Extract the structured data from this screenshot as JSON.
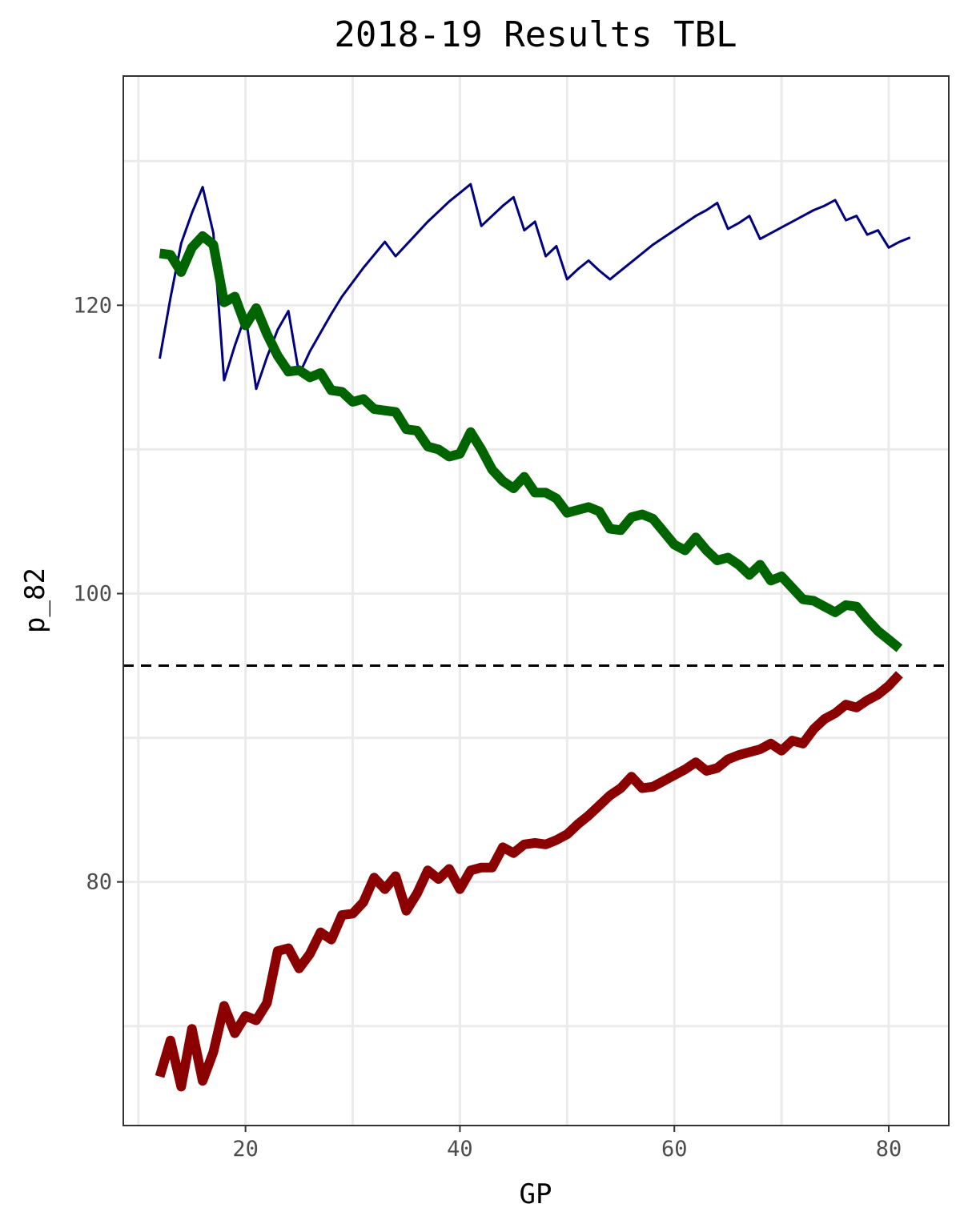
{
  "chart_data": {
    "type": "line",
    "title": "2018-19 Results TBL",
    "xlabel": "GP",
    "ylabel": "p_82",
    "xlim": [
      8.6,
      85.6
    ],
    "ylim": [
      63.1,
      135.9
    ],
    "x_ticks": [
      20,
      40,
      60,
      80
    ],
    "y_ticks": [
      80,
      100,
      120
    ],
    "grid": true,
    "legend": "none",
    "reference_line": {
      "y": 95,
      "style": "dashed",
      "color": "#000000"
    },
    "series": [
      {
        "color": "#000080",
        "line_width": "thin",
        "points": [
          [
            12,
            116.3
          ],
          [
            13,
            120.5
          ],
          [
            14,
            124.3
          ],
          [
            15,
            126.4
          ],
          [
            16,
            128.2
          ],
          [
            17,
            125.0
          ],
          [
            18,
            114.8
          ],
          [
            19,
            117.2
          ],
          [
            20,
            119.3
          ],
          [
            21,
            114.2
          ],
          [
            22,
            116.4
          ],
          [
            23,
            118.3
          ],
          [
            24,
            119.6
          ],
          [
            25,
            115.2
          ],
          [
            26,
            116.8
          ],
          [
            27,
            118.1
          ],
          [
            28,
            119.4
          ],
          [
            29,
            120.6
          ],
          [
            30,
            121.6
          ],
          [
            31,
            122.6
          ],
          [
            32,
            123.5
          ],
          [
            33,
            124.4
          ],
          [
            34,
            123.4
          ],
          [
            35,
            124.2
          ],
          [
            36,
            125.0
          ],
          [
            37,
            125.8
          ],
          [
            38,
            126.5
          ],
          [
            39,
            127.2
          ],
          [
            40,
            127.8
          ],
          [
            41,
            128.4
          ],
          [
            42,
            125.5
          ],
          [
            43,
            126.2
          ],
          [
            44,
            126.9
          ],
          [
            45,
            127.5
          ],
          [
            46,
            125.2
          ],
          [
            47,
            125.8
          ],
          [
            48,
            123.4
          ],
          [
            49,
            124.1
          ],
          [
            50,
            121.8
          ],
          [
            51,
            122.5
          ],
          [
            52,
            123.1
          ],
          [
            53,
            122.4
          ],
          [
            54,
            121.8
          ],
          [
            55,
            122.4
          ],
          [
            56,
            123.0
          ],
          [
            57,
            123.6
          ],
          [
            58,
            124.2
          ],
          [
            59,
            124.7
          ],
          [
            60,
            125.2
          ],
          [
            61,
            125.7
          ],
          [
            62,
            126.2
          ],
          [
            63,
            126.6
          ],
          [
            64,
            127.1
          ],
          [
            65,
            125.3
          ],
          [
            66,
            125.7
          ],
          [
            67,
            126.2
          ],
          [
            68,
            124.6
          ],
          [
            69,
            125.0
          ],
          [
            70,
            125.4
          ],
          [
            71,
            125.8
          ],
          [
            72,
            126.2
          ],
          [
            73,
            126.6
          ],
          [
            74,
            126.9
          ],
          [
            75,
            127.3
          ],
          [
            76,
            125.9
          ],
          [
            77,
            126.2
          ],
          [
            78,
            124.9
          ],
          [
            79,
            125.2
          ],
          [
            80,
            124.0
          ],
          [
            81,
            124.4
          ],
          [
            82,
            124.7
          ]
        ]
      },
      {
        "color": "#006400",
        "line_width": "thick",
        "points": [
          [
            12,
            123.6
          ],
          [
            13,
            123.5
          ],
          [
            14,
            122.3
          ],
          [
            15,
            124.0
          ],
          [
            16,
            124.8
          ],
          [
            17,
            124.2
          ],
          [
            18,
            120.2
          ],
          [
            19,
            120.6
          ],
          [
            20,
            118.6
          ],
          [
            21,
            119.8
          ],
          [
            22,
            118.0
          ],
          [
            23,
            116.5
          ],
          [
            24,
            115.4
          ],
          [
            25,
            115.5
          ],
          [
            26,
            115.0
          ],
          [
            27,
            115.3
          ],
          [
            28,
            114.1
          ],
          [
            29,
            114.0
          ],
          [
            30,
            113.3
          ],
          [
            31,
            113.5
          ],
          [
            32,
            112.8
          ],
          [
            33,
            112.7
          ],
          [
            34,
            112.6
          ],
          [
            35,
            111.4
          ],
          [
            36,
            111.3
          ],
          [
            37,
            110.2
          ],
          [
            38,
            110.0
          ],
          [
            39,
            109.5
          ],
          [
            40,
            109.7
          ],
          [
            41,
            111.2
          ],
          [
            42,
            110.0
          ],
          [
            43,
            108.6
          ],
          [
            44,
            107.8
          ],
          [
            45,
            107.3
          ],
          [
            46,
            108.1
          ],
          [
            47,
            107.0
          ],
          [
            48,
            107.0
          ],
          [
            49,
            106.6
          ],
          [
            50,
            105.6
          ],
          [
            51,
            105.8
          ],
          [
            52,
            106.0
          ],
          [
            53,
            105.7
          ],
          [
            54,
            104.5
          ],
          [
            55,
            104.4
          ],
          [
            56,
            105.3
          ],
          [
            57,
            105.5
          ],
          [
            58,
            105.2
          ],
          [
            59,
            104.3
          ],
          [
            60,
            103.4
          ],
          [
            61,
            103.0
          ],
          [
            62,
            103.9
          ],
          [
            63,
            103.0
          ],
          [
            64,
            102.3
          ],
          [
            65,
            102.5
          ],
          [
            66,
            102.0
          ],
          [
            67,
            101.3
          ],
          [
            68,
            102.0
          ],
          [
            69,
            100.9
          ],
          [
            70,
            101.2
          ],
          [
            71,
            100.4
          ],
          [
            72,
            99.6
          ],
          [
            73,
            99.5
          ],
          [
            74,
            99.1
          ],
          [
            75,
            98.7
          ],
          [
            76,
            99.2
          ],
          [
            77,
            99.1
          ],
          [
            78,
            98.2
          ],
          [
            79,
            97.4
          ],
          [
            80,
            96.8
          ],
          [
            81,
            96.2
          ]
        ]
      },
      {
        "color": "#8b0000",
        "line_width": "thick",
        "points": [
          [
            12,
            66.5
          ],
          [
            13,
            69.0
          ],
          [
            14,
            65.8
          ],
          [
            15,
            69.8
          ],
          [
            16,
            66.2
          ],
          [
            17,
            68.2
          ],
          [
            18,
            71.4
          ],
          [
            19,
            69.5
          ],
          [
            20,
            70.7
          ],
          [
            21,
            70.4
          ],
          [
            22,
            71.6
          ],
          [
            23,
            75.2
          ],
          [
            24,
            75.4
          ],
          [
            25,
            74.0
          ],
          [
            26,
            75.0
          ],
          [
            27,
            76.5
          ],
          [
            28,
            76.0
          ],
          [
            29,
            77.7
          ],
          [
            30,
            77.8
          ],
          [
            31,
            78.6
          ],
          [
            32,
            80.3
          ],
          [
            33,
            79.5
          ],
          [
            34,
            80.4
          ],
          [
            35,
            78.0
          ],
          [
            36,
            79.2
          ],
          [
            37,
            80.8
          ],
          [
            38,
            80.2
          ],
          [
            39,
            80.9
          ],
          [
            40,
            79.5
          ],
          [
            41,
            80.8
          ],
          [
            42,
            81.0
          ],
          [
            43,
            81.0
          ],
          [
            44,
            82.4
          ],
          [
            45,
            82.0
          ],
          [
            46,
            82.6
          ],
          [
            47,
            82.7
          ],
          [
            48,
            82.6
          ],
          [
            49,
            82.9
          ],
          [
            50,
            83.3
          ],
          [
            51,
            84.0
          ],
          [
            52,
            84.6
          ],
          [
            53,
            85.3
          ],
          [
            54,
            86.0
          ],
          [
            55,
            86.5
          ],
          [
            56,
            87.3
          ],
          [
            57,
            86.5
          ],
          [
            58,
            86.6
          ],
          [
            59,
            87.0
          ],
          [
            60,
            87.4
          ],
          [
            61,
            87.8
          ],
          [
            62,
            88.3
          ],
          [
            63,
            87.7
          ],
          [
            64,
            87.9
          ],
          [
            65,
            88.5
          ],
          [
            66,
            88.8
          ],
          [
            67,
            89.0
          ],
          [
            68,
            89.2
          ],
          [
            69,
            89.6
          ],
          [
            70,
            89.1
          ],
          [
            71,
            89.8
          ],
          [
            72,
            89.6
          ],
          [
            73,
            90.6
          ],
          [
            74,
            91.3
          ],
          [
            75,
            91.7
          ],
          [
            76,
            92.3
          ],
          [
            77,
            92.1
          ],
          [
            78,
            92.6
          ],
          [
            79,
            93.0
          ],
          [
            80,
            93.6
          ],
          [
            81,
            94.4
          ]
        ]
      }
    ]
  }
}
